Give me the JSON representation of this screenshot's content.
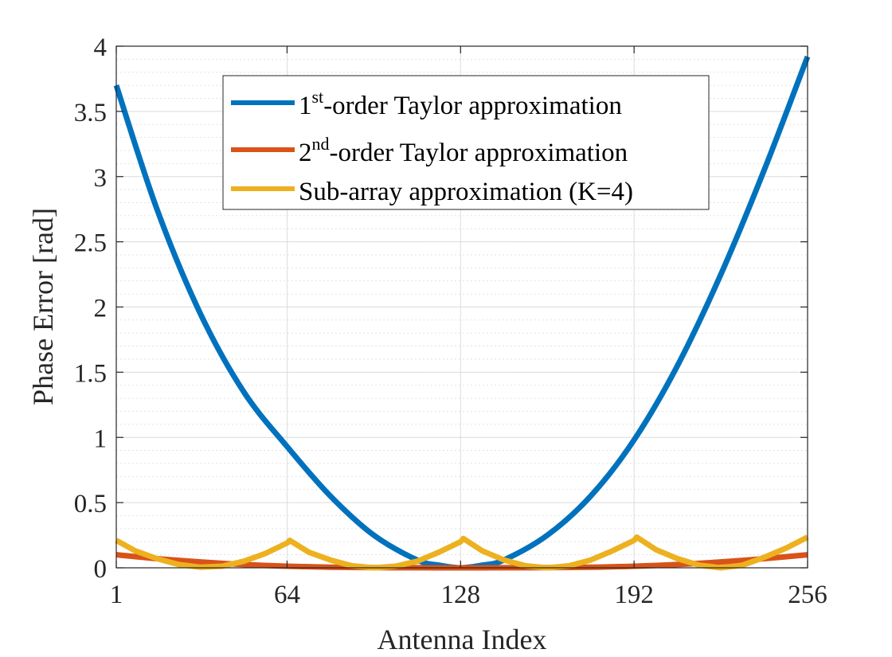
{
  "chart_data": {
    "type": "line",
    "xlabel": "Antenna Index",
    "ylabel": "Phase Error [rad]",
    "xlim": [
      1,
      256
    ],
    "ylim": [
      0,
      4
    ],
    "xticks": [
      1,
      64,
      128,
      192,
      256
    ],
    "xtick_labels": [
      "1",
      "64",
      "128",
      "192",
      "256"
    ],
    "yticks": [
      0,
      0.5,
      1,
      1.5,
      2,
      2.5,
      3,
      3.5,
      4
    ],
    "ytick_labels": [
      "0",
      "0.5",
      "1",
      "1.5",
      "2",
      "2.5",
      "3",
      "3.5",
      "4"
    ],
    "grid": true,
    "minor_grid": true,
    "legend_position": "top-center",
    "series": [
      {
        "name": "1st-order Taylor approximation",
        "legend_base": "1",
        "legend_sup": "st",
        "legend_rest": "-order Taylor approximation",
        "color": "#0072BD",
        "x": [
          1,
          16,
          32,
          48,
          64,
          80,
          96,
          112,
          120,
          128,
          136,
          144,
          160,
          176,
          192,
          208,
          224,
          240,
          256
        ],
        "values": [
          3.7,
          2.75,
          1.95,
          1.35,
          0.93,
          0.55,
          0.25,
          0.06,
          0.02,
          0.0,
          0.02,
          0.06,
          0.25,
          0.55,
          0.98,
          1.55,
          2.25,
          3.05,
          3.92
        ]
      },
      {
        "name": "2nd-order Taylor approximation",
        "legend_base": "2",
        "legend_sup": "nd",
        "legend_rest": "-order Taylor approximation",
        "color": "#D95319",
        "x": [
          1,
          16,
          32,
          48,
          64,
          80,
          96,
          112,
          128,
          144,
          160,
          176,
          192,
          208,
          224,
          240,
          256
        ],
        "values": [
          0.1,
          0.07,
          0.045,
          0.025,
          0.012,
          0.005,
          0.002,
          0.0005,
          0.0,
          0.0005,
          0.002,
          0.005,
          0.012,
          0.025,
          0.045,
          0.07,
          0.1
        ]
      },
      {
        "name": "Sub-array approximation (K=4)",
        "legend_base": "Sub-array approximation (K=4)",
        "legend_sup": "",
        "legend_rest": "",
        "color": "#EDB120",
        "x": [
          1,
          8,
          16,
          24,
          32,
          40,
          48,
          56,
          64,
          65,
          72,
          80,
          88,
          96,
          104,
          112,
          120,
          128,
          129,
          136,
          144,
          152,
          160,
          168,
          176,
          184,
          192,
          193,
          200,
          208,
          216,
          224,
          232,
          240,
          248,
          256
        ],
        "values": [
          0.21,
          0.13,
          0.07,
          0.025,
          0.005,
          0.012,
          0.05,
          0.11,
          0.19,
          0.21,
          0.12,
          0.06,
          0.015,
          0.0,
          0.012,
          0.05,
          0.12,
          0.2,
          0.225,
          0.13,
          0.06,
          0.015,
          0.0,
          0.015,
          0.06,
          0.13,
          0.21,
          0.235,
          0.14,
          0.07,
          0.02,
          0.0,
          0.02,
          0.08,
          0.15,
          0.235
        ]
      }
    ]
  }
}
